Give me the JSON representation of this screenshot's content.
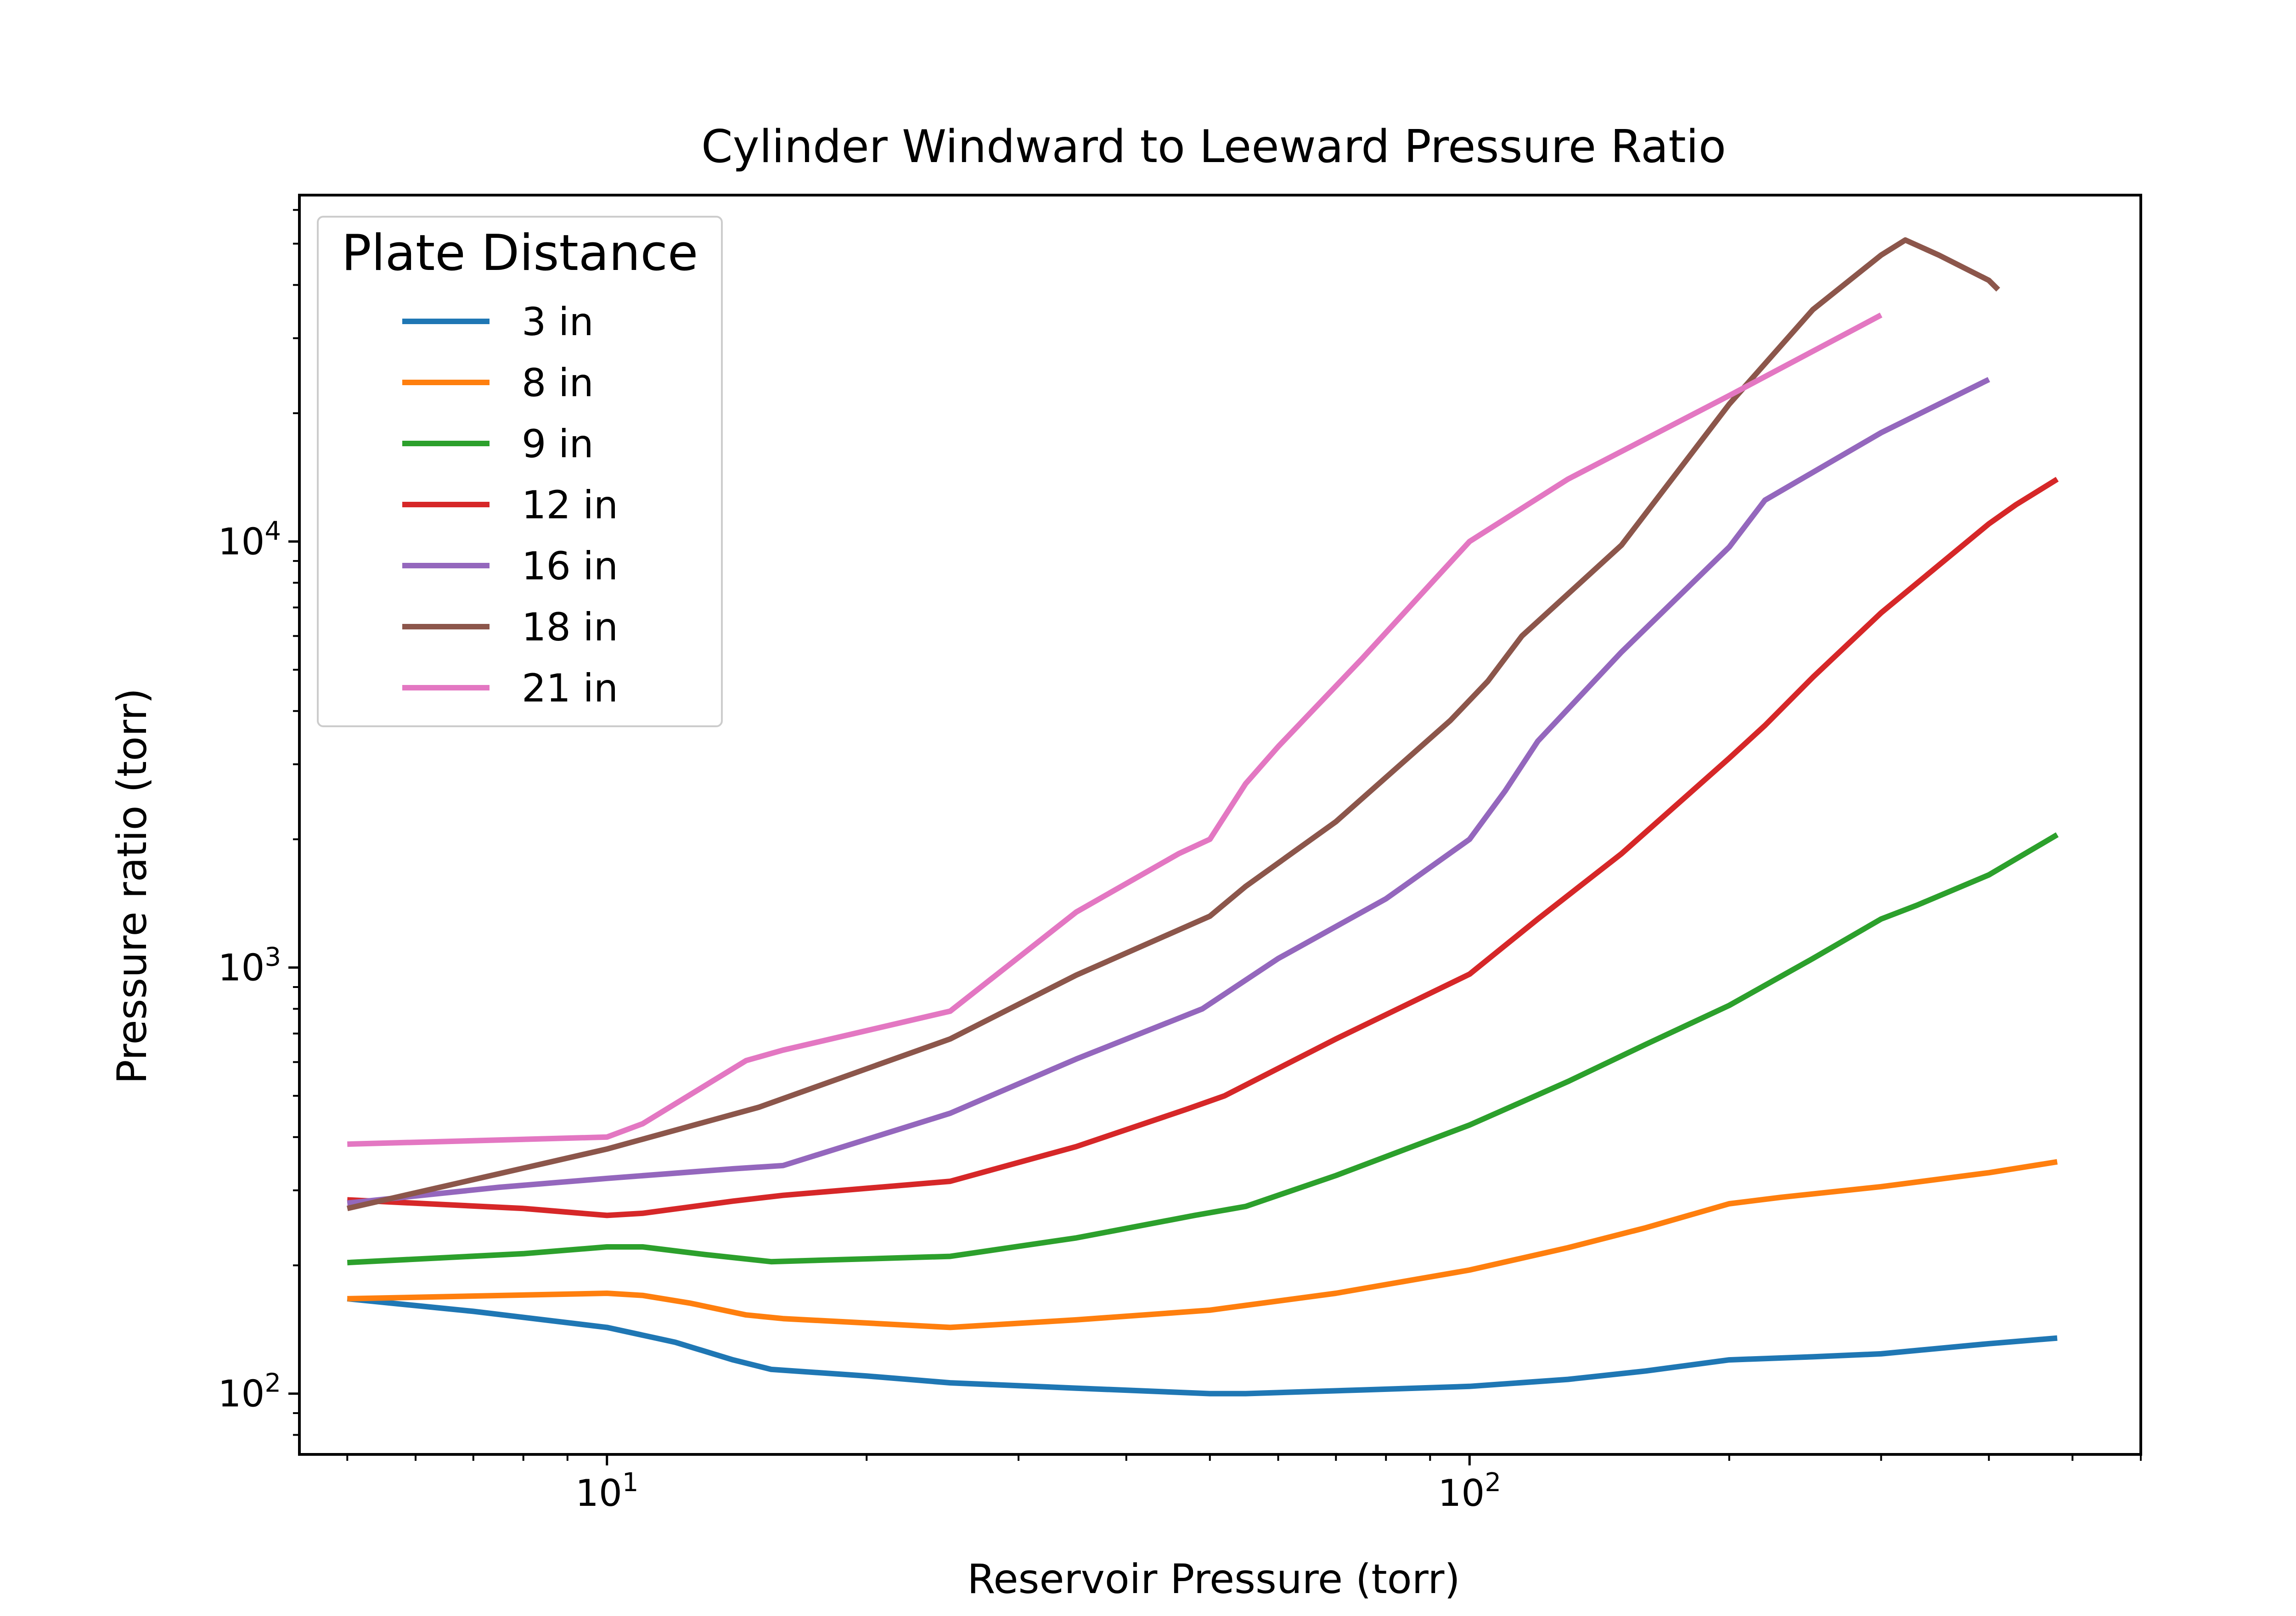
{
  "chart_data": {
    "type": "line",
    "title": "Cylinder Windward to Leeward Pressure Ratio",
    "xlabel": "Reservoir Pressure (torr)",
    "ylabel": "Pressure ratio (torr)",
    "xscale": "log",
    "yscale": "log",
    "xlim": [
      4.4,
      600
    ],
    "ylim": [
      72,
      65000
    ],
    "xticks": [
      {
        "value": 10,
        "base": "10",
        "exp": "1"
      },
      {
        "value": 100,
        "base": "10",
        "exp": "2"
      }
    ],
    "yticks": [
      {
        "value": 100,
        "base": "10",
        "exp": "2"
      },
      {
        "value": 1000,
        "base": "10",
        "exp": "3"
      },
      {
        "value": 10000,
        "base": "10",
        "exp": "4"
      }
    ],
    "grid": false,
    "legend": {
      "title": "Plate Distance",
      "placement": "upper-left"
    },
    "series": [
      {
        "name": "3 in",
        "color": "#1f77b4",
        "points": [
          [
            5,
            167
          ],
          [
            7,
            156
          ],
          [
            10,
            143
          ],
          [
            12,
            132
          ],
          [
            14,
            120
          ],
          [
            15.5,
            114
          ],
          [
            20,
            110
          ],
          [
            25,
            106
          ],
          [
            35,
            103
          ],
          [
            50,
            100
          ],
          [
            55,
            100
          ],
          [
            75,
            102
          ],
          [
            100,
            104
          ],
          [
            130,
            108
          ],
          [
            160,
            113
          ],
          [
            200,
            120
          ],
          [
            250,
            122
          ],
          [
            300,
            124
          ],
          [
            400,
            131
          ],
          [
            480,
            135
          ]
        ]
      },
      {
        "name": "8 in",
        "color": "#ff7f0e",
        "points": [
          [
            5,
            167
          ],
          [
            10,
            172
          ],
          [
            11,
            170
          ],
          [
            12.5,
            163
          ],
          [
            14.5,
            153
          ],
          [
            16,
            150
          ],
          [
            25,
            143
          ],
          [
            35,
            149
          ],
          [
            50,
            157
          ],
          [
            70,
            172
          ],
          [
            100,
            195
          ],
          [
            130,
            220
          ],
          [
            160,
            245
          ],
          [
            200,
            279
          ],
          [
            230,
            289
          ],
          [
            300,
            306
          ],
          [
            400,
            330
          ],
          [
            480,
            350
          ]
        ]
      },
      {
        "name": "9 in",
        "color": "#2ca02c",
        "points": [
          [
            5,
            203
          ],
          [
            8,
            213
          ],
          [
            10,
            221
          ],
          [
            11,
            221
          ],
          [
            13,
            212
          ],
          [
            15.5,
            204
          ],
          [
            25,
            210
          ],
          [
            35,
            232
          ],
          [
            48,
            262
          ],
          [
            55,
            275
          ],
          [
            70,
            325
          ],
          [
            100,
            427
          ],
          [
            130,
            540
          ],
          [
            160,
            660
          ],
          [
            200,
            815
          ],
          [
            250,
            1050
          ],
          [
            300,
            1300
          ],
          [
            330,
            1400
          ],
          [
            400,
            1650
          ],
          [
            480,
            2050
          ]
        ]
      },
      {
        "name": "12 in",
        "color": "#d62728",
        "points": [
          [
            5,
            285
          ],
          [
            8,
            272
          ],
          [
            10,
            262
          ],
          [
            11,
            265
          ],
          [
            14,
            283
          ],
          [
            16,
            292
          ],
          [
            25,
            315
          ],
          [
            35,
            380
          ],
          [
            47,
            465
          ],
          [
            52,
            500
          ],
          [
            70,
            680
          ],
          [
            100,
            965
          ],
          [
            120,
            1300
          ],
          [
            150,
            1850
          ],
          [
            200,
            3100
          ],
          [
            220,
            3700
          ],
          [
            250,
            4800
          ],
          [
            300,
            6800
          ],
          [
            400,
            11000
          ],
          [
            430,
            12200
          ],
          [
            480,
            14000
          ]
        ]
      },
      {
        "name": "16 in",
        "color": "#9467bd",
        "points": [
          [
            5,
            280
          ],
          [
            7.5,
            305
          ],
          [
            10,
            320
          ],
          [
            14,
            337
          ],
          [
            16,
            343
          ],
          [
            25,
            455
          ],
          [
            35,
            610
          ],
          [
            49,
            800
          ],
          [
            60,
            1050
          ],
          [
            80,
            1450
          ],
          [
            100,
            2000
          ],
          [
            110,
            2600
          ],
          [
            120,
            3400
          ],
          [
            150,
            5500
          ],
          [
            200,
            9700
          ],
          [
            220,
            12500
          ],
          [
            300,
            18000
          ],
          [
            400,
            24000
          ]
        ]
      },
      {
        "name": "18 in",
        "color": "#8c564b",
        "points": [
          [
            5,
            272
          ],
          [
            10,
            375
          ],
          [
            15,
            470
          ],
          [
            25,
            680
          ],
          [
            35,
            960
          ],
          [
            50,
            1320
          ],
          [
            55,
            1550
          ],
          [
            70,
            2200
          ],
          [
            95,
            3800
          ],
          [
            105,
            4700
          ],
          [
            115,
            6000
          ],
          [
            150,
            9800
          ],
          [
            200,
            21000
          ],
          [
            250,
            35000
          ],
          [
            300,
            47000
          ],
          [
            320,
            51000
          ],
          [
            350,
            47000
          ],
          [
            400,
            41000
          ],
          [
            410,
            39000
          ]
        ]
      },
      {
        "name": "21 in",
        "color": "#e377c2",
        "points": [
          [
            5,
            385
          ],
          [
            10,
            400
          ],
          [
            11,
            430
          ],
          [
            14.5,
            605
          ],
          [
            16,
            640
          ],
          [
            25,
            790
          ],
          [
            35,
            1350
          ],
          [
            46,
            1850
          ],
          [
            50,
            2000
          ],
          [
            55,
            2700
          ],
          [
            60,
            3300
          ],
          [
            75,
            5300
          ],
          [
            100,
            10000
          ],
          [
            130,
            14000
          ],
          [
            200,
            22000
          ],
          [
            300,
            34000
          ]
        ]
      }
    ]
  }
}
